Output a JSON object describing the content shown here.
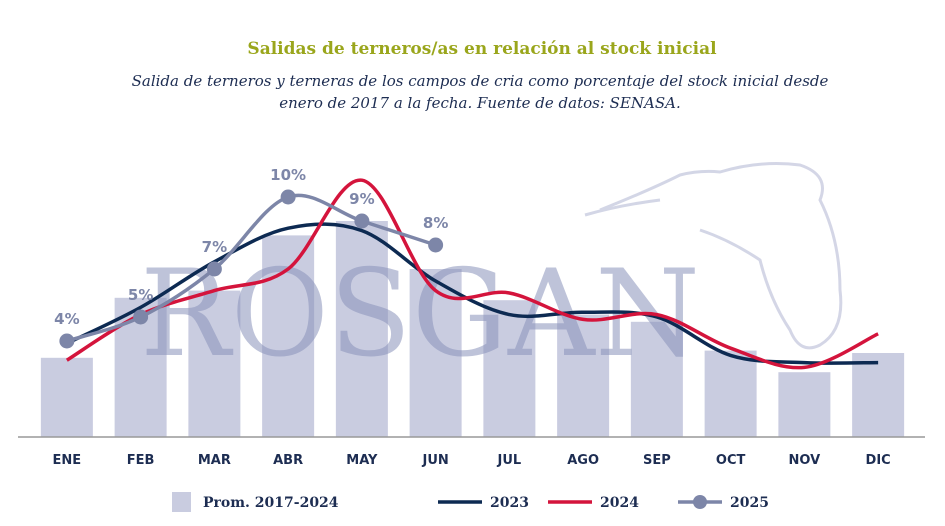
{
  "chart_data": {
    "type": "line",
    "title": "Salidas de terneros/as en relación al stock inicial",
    "subtitle": "Salida de terneros y terneras de los campos de cria como porcentaje del stock inicial desde enero de 2017 a la fecha. Fuente de datos: SENASA.",
    "watermark": "ROSGAN",
    "categories": [
      "ENE",
      "FEB",
      "MAR",
      "ABR",
      "MAY",
      "JUN",
      "JUL",
      "AGO",
      "SEP",
      "OCT",
      "NOV",
      "DIC"
    ],
    "ylim": [
      0,
      12.5
    ],
    "series": [
      {
        "name": "Prom. 2017-2024",
        "type": "bar",
        "color": "#c9cce0",
        "values": [
          3.3,
          5.8,
          6.1,
          8.4,
          9.0,
          7.0,
          5.7,
          5.1,
          4.8,
          3.6,
          2.7,
          3.5
        ]
      },
      {
        "name": "2023",
        "type": "line",
        "color": "#0d2a52",
        "values": [
          3.9,
          5.4,
          7.3,
          8.7,
          8.6,
          6.5,
          5.1,
          5.2,
          5.0,
          3.4,
          3.1,
          3.1
        ]
      },
      {
        "name": "2024",
        "type": "line",
        "color": "#d4143c",
        "values": [
          3.2,
          5.1,
          6.1,
          7.0,
          10.7,
          6.1,
          6.0,
          4.9,
          5.1,
          3.7,
          2.9,
          4.3
        ]
      },
      {
        "name": "2025",
        "type": "line",
        "markers": true,
        "color": "#7d86a8",
        "values": [
          4,
          5,
          7,
          10,
          9,
          8,
          null,
          null,
          null,
          null,
          null,
          null
        ],
        "value_labels": [
          "4%",
          "5%",
          "7%",
          "10%",
          "9%",
          "8%",
          null,
          null,
          null,
          null,
          null,
          null
        ]
      }
    ]
  }
}
